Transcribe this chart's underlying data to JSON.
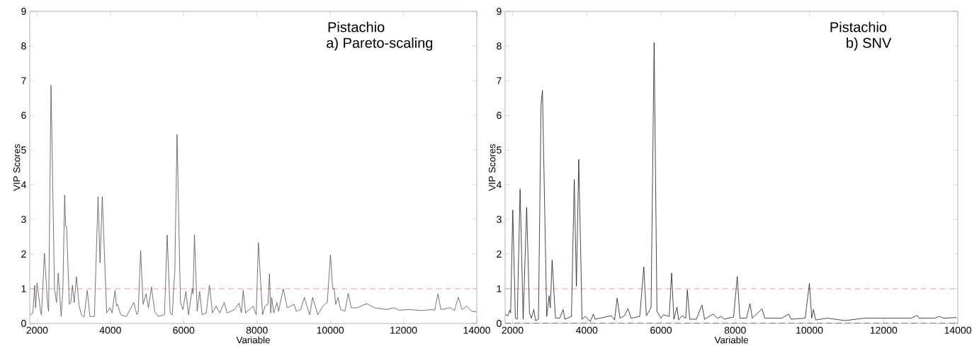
{
  "chart_data": [
    {
      "type": "line",
      "xlabel": "Variable",
      "ylabel": "VIP Scores",
      "annotations": [
        "Pistachio",
        "a) Pareto-scaling"
      ],
      "xlim": [
        1800,
        14000
      ],
      "ylim": [
        0,
        9
      ],
      "xticks": [
        2000,
        4000,
        6000,
        8000,
        10000,
        12000,
        14000
      ],
      "yticks": [
        0,
        1,
        2,
        3,
        4,
        5,
        6,
        7,
        8,
        9
      ],
      "ref_lines": [
        {
          "axis": "y",
          "value": 1,
          "color": "#ff8c8c",
          "line_style": "dashed"
        }
      ],
      "series": [
        {
          "color": "#505050",
          "x": [
            1805,
            1886,
            1933,
            1960,
            2000,
            2100,
            2120,
            2200,
            2290,
            2315,
            2380,
            2475,
            2530,
            2577,
            2658,
            2705,
            2752,
            2780,
            2805,
            2880,
            2920,
            2966,
            3013,
            3074,
            3148,
            3208,
            3282,
            3369,
            3443,
            3564,
            3664,
            3718,
            3779,
            3899,
            3987,
            4047,
            4128,
            4168,
            4195,
            4282,
            4436,
            4638,
            4725,
            4758,
            4826,
            4893,
            4973,
            5040,
            5121,
            5208,
            5309,
            5477,
            5550,
            5631,
            5691,
            5738,
            5758,
            5819,
            5913,
            5980,
            6060,
            6134,
            6235,
            6255,
            6295,
            6369,
            6436,
            6503,
            6617,
            6705,
            6785,
            6886,
            6987,
            7107,
            7188,
            7389,
            7510,
            7577,
            7624,
            7691,
            7893,
            7980,
            8040,
            8154,
            8221,
            8302,
            8342,
            8376,
            8403,
            8456,
            8544,
            8591,
            8718,
            8826,
            8926,
            9013,
            9074,
            9195,
            9295,
            9362,
            9443,
            9517,
            9664,
            9799,
            9919,
            10007,
            10067,
            10107,
            10148,
            10215,
            10282,
            10403,
            10490,
            10571,
            10738,
            10993,
            11208,
            11544,
            11745,
            11879,
            12148,
            12483,
            12785,
            12852,
            12940,
            13020,
            13289,
            13389,
            13497,
            13597,
            13725,
            13859,
            13993
          ],
          "values": [
            0.25,
            0.3,
            1.1,
            0.45,
            1.17,
            0.3,
            0.25,
            2.02,
            0.5,
            0.35,
            6.87,
            1.0,
            0.6,
            1.45,
            0.2,
            1.0,
            3.7,
            2.8,
            2.8,
            0.55,
            0.6,
            1.1,
            0.6,
            1.35,
            0.5,
            0.25,
            0.18,
            0.95,
            0.2,
            0.2,
            3.65,
            1.75,
            3.65,
            0.3,
            0.45,
            0.3,
            0.95,
            0.5,
            0.55,
            0.25,
            0.2,
            0.6,
            0.25,
            0.3,
            2.1,
            0.55,
            0.85,
            0.45,
            1.05,
            0.35,
            0.2,
            0.25,
            2.55,
            0.3,
            0.25,
            1.2,
            1.45,
            5.45,
            0.6,
            0.4,
            0.92,
            0.25,
            1.0,
            0.85,
            2.55,
            0.35,
            0.92,
            0.25,
            0.3,
            1.1,
            0.3,
            0.5,
            0.3,
            0.6,
            0.3,
            0.4,
            0.58,
            0.3,
            0.95,
            0.3,
            0.5,
            0.25,
            2.33,
            0.25,
            0.5,
            0.55,
            1.43,
            0.3,
            0.75,
            0.3,
            0.6,
            0.35,
            1.0,
            0.45,
            0.5,
            0.55,
            0.35,
            0.4,
            0.75,
            0.5,
            0.25,
            0.75,
            0.25,
            0.5,
            0.6,
            1.98,
            1.0,
            1.0,
            0.55,
            0.75,
            0.4,
            0.35,
            0.87,
            0.45,
            0.45,
            0.57,
            0.45,
            0.4,
            0.45,
            0.38,
            0.4,
            0.37,
            0.4,
            0.38,
            0.85,
            0.4,
            0.45,
            0.37,
            0.75,
            0.4,
            0.5,
            0.35,
            0.33
          ]
        }
      ]
    },
    {
      "type": "line",
      "xlabel": "Variable",
      "ylabel": "VIP Scores",
      "annotations": [
        "Pistachio",
        "b) SNV"
      ],
      "xlim": [
        1800,
        14000
      ],
      "ylim": [
        0,
        9
      ],
      "xticks": [
        2000,
        4000,
        6000,
        8000,
        10000,
        12000,
        14000
      ],
      "yticks": [
        0,
        1,
        2,
        3,
        4,
        5,
        6,
        7,
        8,
        9
      ],
      "ref_lines": [
        {
          "axis": "y",
          "value": 1,
          "color": "#ff8c8c",
          "line_style": "dashed"
        },
        {
          "axis": "y",
          "value": 0,
          "color": "#000000",
          "line_style": "dashed"
        }
      ],
      "series": [
        {
          "color": "#1a1a1a",
          "x": [
            1800,
            1873,
            1924,
            1949,
            2006,
            2076,
            2127,
            2203,
            2286,
            2381,
            2457,
            2508,
            2571,
            2622,
            2698,
            2768,
            2806,
            2921,
            2984,
            3016,
            3067,
            3156,
            3270,
            3365,
            3410,
            3587,
            3663,
            3721,
            3784,
            3873,
            3968,
            4095,
            4178,
            4222,
            4349,
            4667,
            4749,
            4819,
            4895,
            5016,
            5111,
            5194,
            5429,
            5537,
            5606,
            5733,
            5816,
            5892,
            6000,
            6063,
            6222,
            6286,
            6349,
            6432,
            6476,
            6571,
            6667,
            6711,
            6775,
            6952,
            7105,
            7175,
            7410,
            7524,
            7619,
            7714,
            7797,
            7956,
            8057,
            8127,
            8304,
            8399,
            8462,
            8722,
            8797,
            9253,
            9443,
            9506,
            9886,
            10000,
            10063,
            10108,
            10171,
            10487,
            10962,
            11468,
            12101,
            12734,
            12905,
            12955,
            13367,
            13506,
            13620,
            13968
          ],
          "values": [
            0.25,
            0.22,
            0.38,
            0.3,
            3.27,
            0.15,
            0.12,
            3.87,
            0.12,
            3.35,
            0.3,
            0.15,
            0.4,
            0.08,
            0.12,
            6.3,
            6.72,
            0.2,
            0.8,
            0.45,
            1.83,
            0.15,
            0.15,
            0.4,
            0.12,
            0.2,
            4.15,
            1.07,
            4.73,
            0.12,
            0.2,
            0.05,
            0.27,
            0.12,
            0.15,
            0.22,
            0.1,
            0.73,
            0.15,
            0.22,
            0.43,
            0.15,
            0.2,
            1.63,
            0.22,
            0.45,
            8.1,
            0.35,
            0.15,
            0.25,
            0.2,
            1.45,
            0.12,
            0.47,
            0.1,
            0.22,
            0.15,
            0.97,
            0.12,
            0.12,
            0.53,
            0.12,
            0.27,
            0.15,
            0.2,
            0.12,
            0.15,
            0.18,
            1.35,
            0.15,
            0.15,
            0.57,
            0.15,
            0.42,
            0.15,
            0.15,
            0.27,
            0.12,
            0.15,
            1.15,
            0.15,
            0.4,
            0.1,
            0.15,
            0.08,
            0.15,
            0.15,
            0.15,
            0.23,
            0.15,
            0.15,
            0.2,
            0.15,
            0.17
          ]
        }
      ]
    }
  ]
}
